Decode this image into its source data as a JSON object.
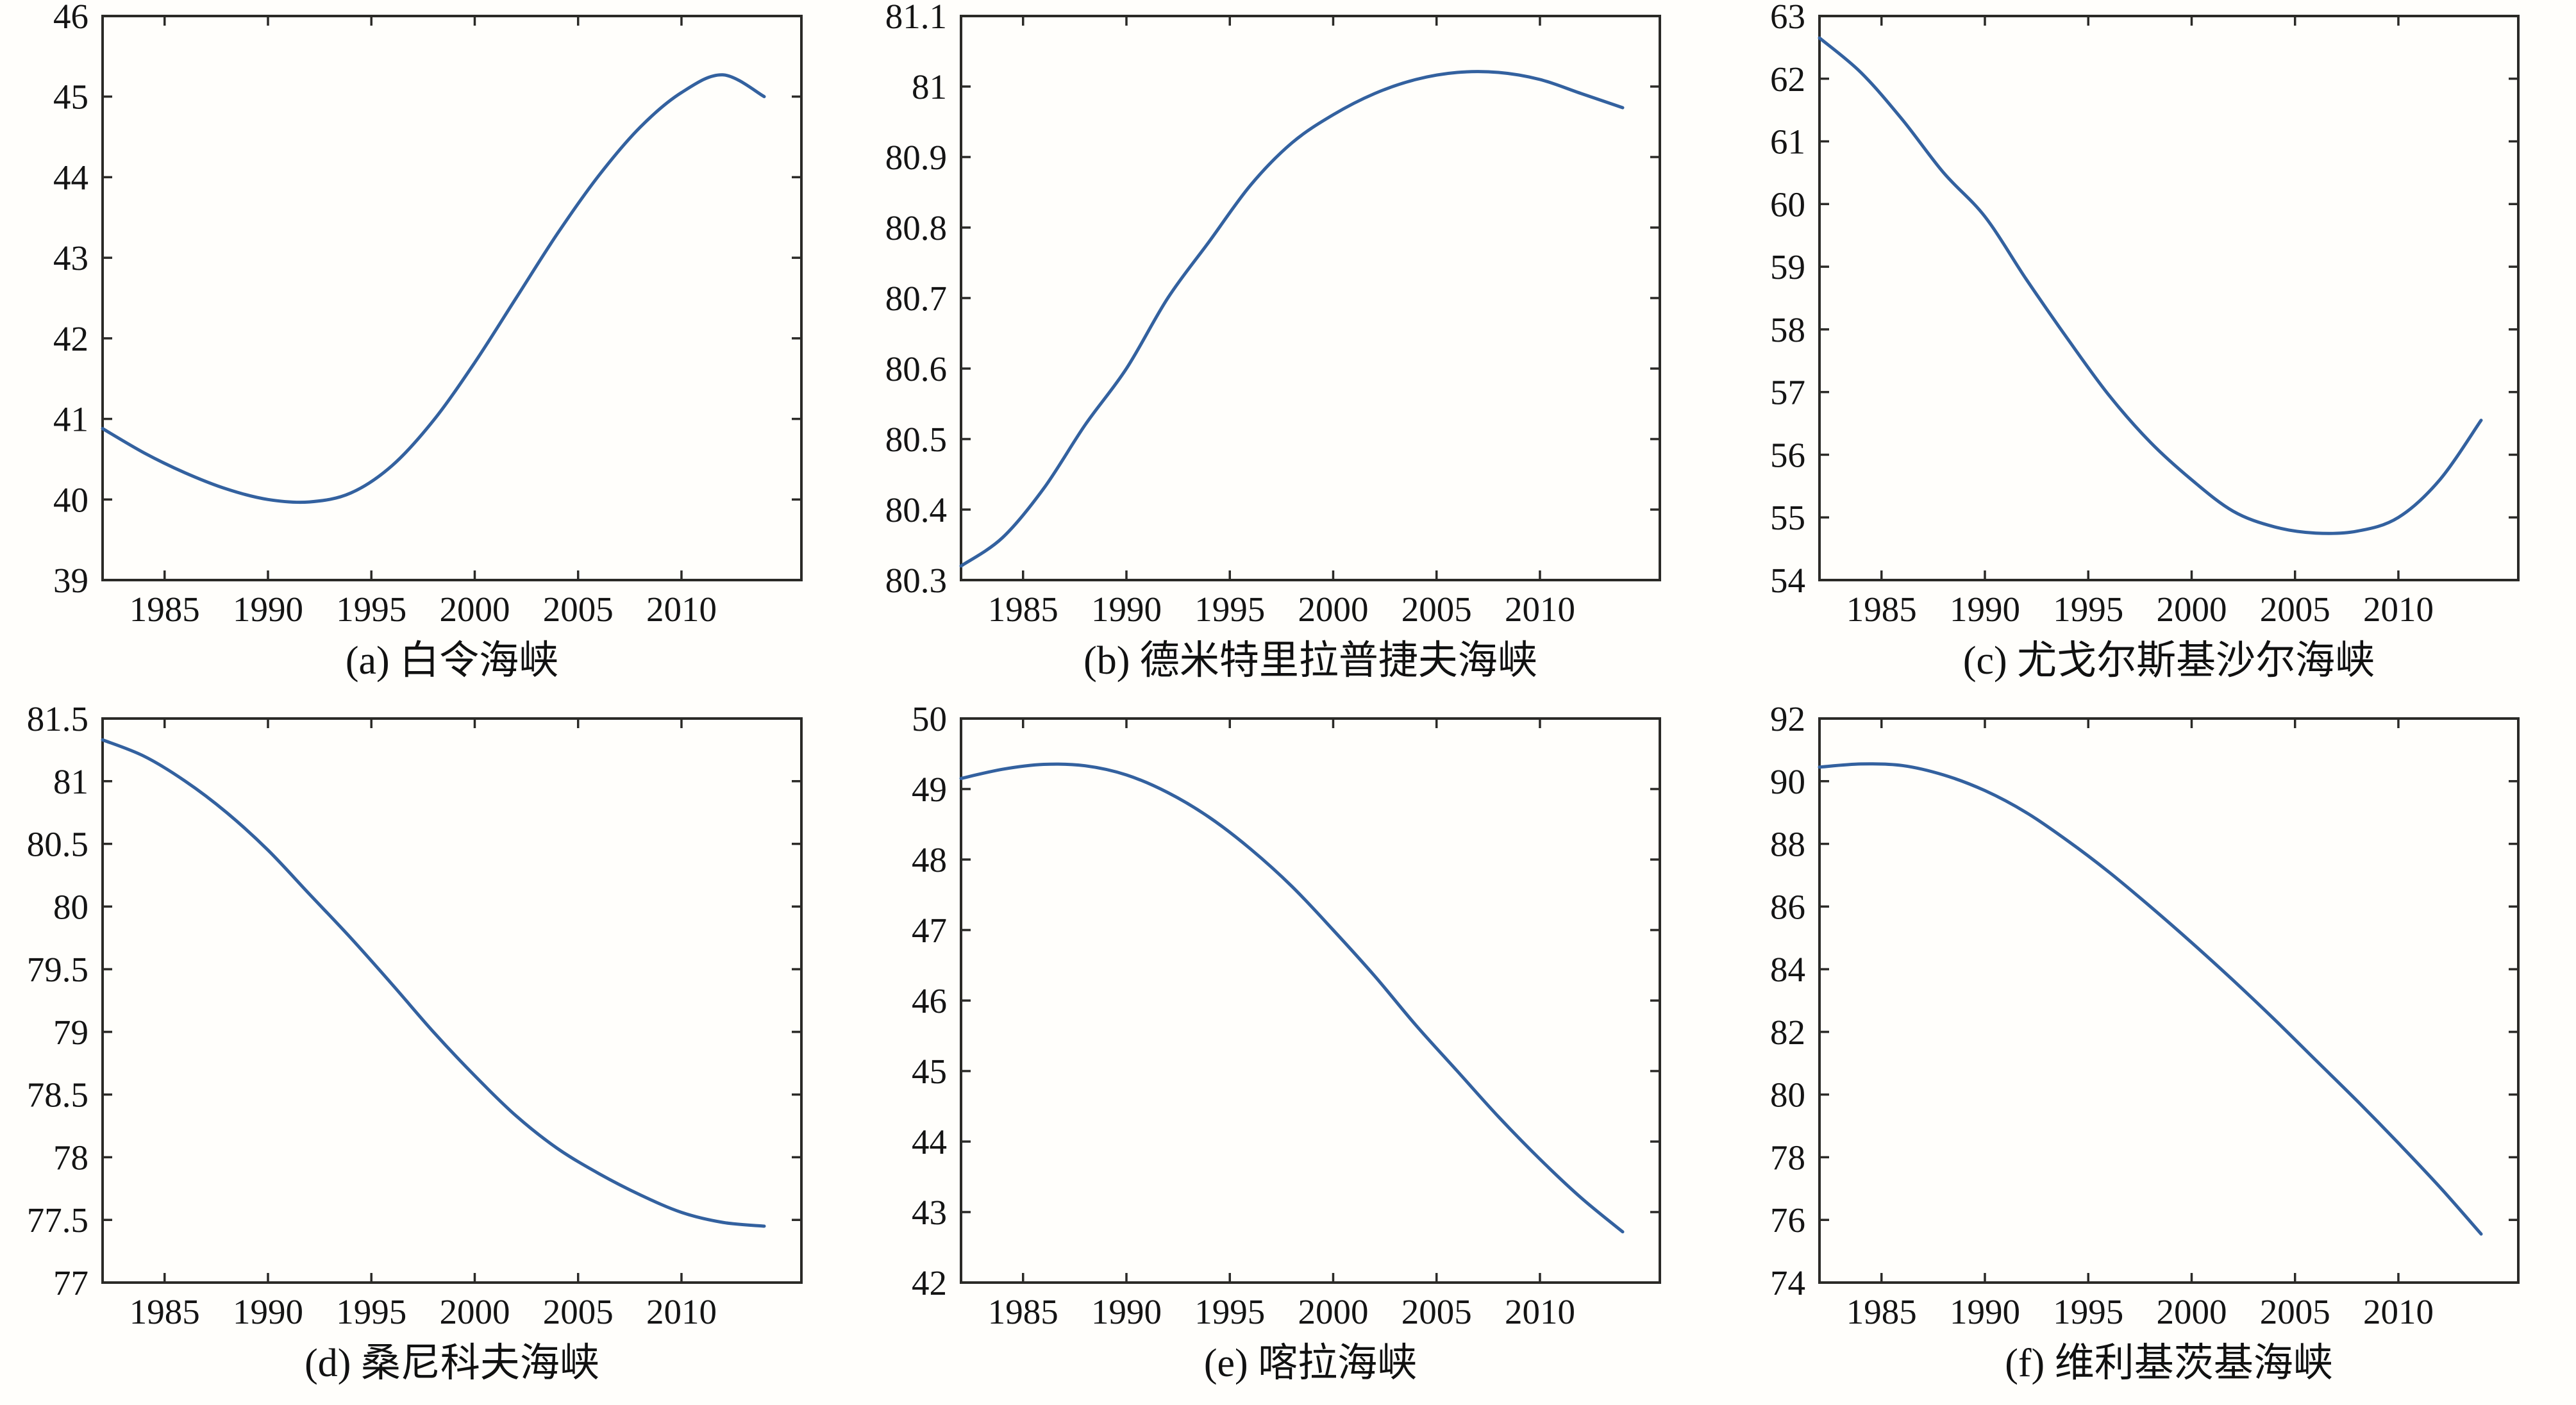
{
  "page": {
    "background": "#fffefb",
    "description": "Figure with six smoothed time-series panels of Arctic strait values, 1982-2014"
  },
  "style": {
    "line_color": "#33619f",
    "axis_color": "#2b2a27",
    "text_color": "#141414"
  },
  "chart_data": [
    {
      "id": "a",
      "type": "line",
      "title": "(a) 白令海峡",
      "xlabel": "",
      "ylabel": "",
      "grid": false,
      "legend": null,
      "xlim": [
        1982,
        2015.8
      ],
      "ylim": [
        39,
        46
      ],
      "xticks": [
        1985,
        1990,
        1995,
        2000,
        2005,
        2010
      ],
      "xtick_labels": [
        "1985",
        "1990",
        "1995",
        "2000",
        "2005",
        "2010"
      ],
      "yticks": [
        39,
        40,
        41,
        42,
        43,
        44,
        45,
        46
      ],
      "ytick_labels": [
        "39",
        "40",
        "41",
        "42",
        "43",
        "44",
        "45",
        "46"
      ],
      "x": [
        1982,
        1984,
        1986,
        1988,
        1990,
        1992,
        1994,
        1996,
        1998,
        2000,
        2002,
        2004,
        2006,
        2008,
        2010,
        2012,
        2014
      ],
      "y": [
        40.88,
        40.58,
        40.33,
        40.13,
        40.0,
        39.97,
        40.08,
        40.42,
        40.98,
        41.7,
        42.5,
        43.3,
        44.02,
        44.62,
        45.05,
        45.27,
        45.0
      ]
    },
    {
      "id": "b",
      "type": "line",
      "title": "(b) 德米特里拉普捷夫海峡",
      "xlabel": "",
      "ylabel": "",
      "grid": false,
      "legend": null,
      "xlim": [
        1982,
        2015.8
      ],
      "ylim": [
        80.3,
        81.1
      ],
      "xticks": [
        1985,
        1990,
        1995,
        2000,
        2005,
        2010
      ],
      "xtick_labels": [
        "1985",
        "1990",
        "1995",
        "2000",
        "2005",
        "2010"
      ],
      "yticks": [
        80.3,
        80.4,
        80.5,
        80.6,
        80.7,
        80.8,
        80.9,
        81,
        81.1
      ],
      "ytick_labels": [
        "80.3",
        "80.4",
        "80.5",
        "80.6",
        "80.7",
        "80.8",
        "80.9",
        "81",
        "81.1"
      ],
      "x": [
        1982,
        1984,
        1986,
        1988,
        1990,
        1992,
        1994,
        1996,
        1998,
        2000,
        2002,
        2004,
        2006,
        2008,
        2010,
        2012,
        2014
      ],
      "y": [
        80.32,
        80.36,
        80.43,
        80.52,
        80.6,
        80.7,
        80.78,
        80.86,
        80.92,
        80.96,
        80.99,
        81.01,
        81.02,
        81.02,
        81.01,
        80.99,
        80.97
      ]
    },
    {
      "id": "c",
      "type": "line",
      "title": "(c) 尤戈尔斯基沙尔海峡",
      "xlabel": "",
      "ylabel": "",
      "grid": false,
      "legend": null,
      "xlim": [
        1982,
        2015.8
      ],
      "ylim": [
        54,
        63
      ],
      "xticks": [
        1985,
        1990,
        1995,
        2000,
        2005,
        2010
      ],
      "xtick_labels": [
        "1985",
        "1990",
        "1995",
        "2000",
        "2005",
        "2010"
      ],
      "yticks": [
        54,
        55,
        56,
        57,
        58,
        59,
        60,
        61,
        62,
        63
      ],
      "ytick_labels": [
        "54",
        "55",
        "56",
        "57",
        "58",
        "59",
        "60",
        "61",
        "62",
        "63"
      ],
      "x": [
        1982,
        1984,
        1986,
        1988,
        1990,
        1992,
        1994,
        1996,
        1998,
        2000,
        2002,
        2004,
        2006,
        2008,
        2010,
        2012,
        2014
      ],
      "y": [
        62.65,
        62.1,
        61.35,
        60.5,
        59.8,
        58.8,
        57.85,
        56.95,
        56.2,
        55.6,
        55.1,
        54.85,
        54.75,
        54.78,
        55.0,
        55.6,
        56.55
      ]
    },
    {
      "id": "d",
      "type": "line",
      "title": "(d) 桑尼科夫海峡",
      "xlabel": "",
      "ylabel": "",
      "grid": false,
      "legend": null,
      "xlim": [
        1982,
        2015.8
      ],
      "ylim": [
        77,
        81.5
      ],
      "xticks": [
        1985,
        1990,
        1995,
        2000,
        2005,
        2010
      ],
      "xtick_labels": [
        "1985",
        "1990",
        "1995",
        "2000",
        "2005",
        "2010"
      ],
      "yticks": [
        77,
        77.5,
        78,
        78.5,
        79,
        79.5,
        80,
        80.5,
        81,
        81.5
      ],
      "ytick_labels": [
        "77",
        "77.5",
        "78",
        "78.5",
        "79",
        "79.5",
        "80",
        "80.5",
        "81",
        "81.5"
      ],
      "x": [
        1982,
        1984,
        1986,
        1988,
        1990,
        1992,
        1994,
        1996,
        1998,
        2000,
        2002,
        2004,
        2006,
        2008,
        2010,
        2012,
        2014
      ],
      "y": [
        81.33,
        81.2,
        81.0,
        80.75,
        80.45,
        80.1,
        79.75,
        79.38,
        79.0,
        78.65,
        78.33,
        78.07,
        77.87,
        77.7,
        77.56,
        77.48,
        77.45
      ]
    },
    {
      "id": "e",
      "type": "line",
      "title": "(e) 喀拉海峡",
      "xlabel": "",
      "ylabel": "",
      "grid": false,
      "legend": null,
      "xlim": [
        1982,
        2015.8
      ],
      "ylim": [
        42,
        50
      ],
      "xticks": [
        1985,
        1990,
        1995,
        2000,
        2005,
        2010
      ],
      "xtick_labels": [
        "1985",
        "1990",
        "1995",
        "2000",
        "2005",
        "2010"
      ],
      "yticks": [
        42,
        43,
        44,
        45,
        46,
        47,
        48,
        49,
        50
      ],
      "ytick_labels": [
        "42",
        "43",
        "44",
        "45",
        "46",
        "47",
        "48",
        "49",
        "50"
      ],
      "x": [
        1982,
        1984,
        1986,
        1988,
        1990,
        1992,
        1994,
        1996,
        1998,
        2000,
        2002,
        2004,
        2006,
        2008,
        2010,
        2012,
        2014
      ],
      "y": [
        49.15,
        49.28,
        49.35,
        49.33,
        49.2,
        48.95,
        48.6,
        48.15,
        47.62,
        47.0,
        46.35,
        45.65,
        45.0,
        44.35,
        43.75,
        43.2,
        42.72
      ]
    },
    {
      "id": "f",
      "type": "line",
      "title": "(f) 维利基茨基海峡",
      "xlabel": "",
      "ylabel": "",
      "grid": false,
      "legend": null,
      "xlim": [
        1982,
        2015.8
      ],
      "ylim": [
        74,
        92
      ],
      "xticks": [
        1985,
        1990,
        1995,
        2000,
        2005,
        2010
      ],
      "xtick_labels": [
        "1985",
        "1990",
        "1995",
        "2000",
        "2005",
        "2010"
      ],
      "yticks": [
        74,
        76,
        78,
        80,
        82,
        84,
        86,
        88,
        90,
        92
      ],
      "ytick_labels": [
        "74",
        "76",
        "78",
        "80",
        "82",
        "84",
        "86",
        "88",
        "90",
        "92"
      ],
      "x": [
        1982,
        1984,
        1986,
        1988,
        1990,
        1992,
        1994,
        1996,
        1998,
        2000,
        2002,
        2004,
        2006,
        2008,
        2010,
        2012,
        2014
      ],
      "y": [
        90.45,
        90.55,
        90.5,
        90.2,
        89.7,
        89.0,
        88.1,
        87.1,
        86.0,
        84.85,
        83.65,
        82.4,
        81.1,
        79.8,
        78.45,
        77.05,
        75.55
      ]
    }
  ]
}
